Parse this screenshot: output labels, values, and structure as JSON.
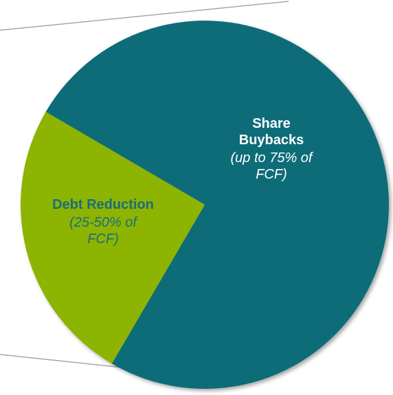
{
  "chart_data": {
    "type": "pie",
    "categories": [
      "Share Buybacks",
      "Debt Reduction"
    ],
    "values": [
      75,
      25
    ],
    "colors": [
      "#0b6c78",
      "#8cb400"
    ],
    "annotations": [
      "(up to 75% of FCF)",
      "(25-50% of FCF)"
    ]
  }
}
